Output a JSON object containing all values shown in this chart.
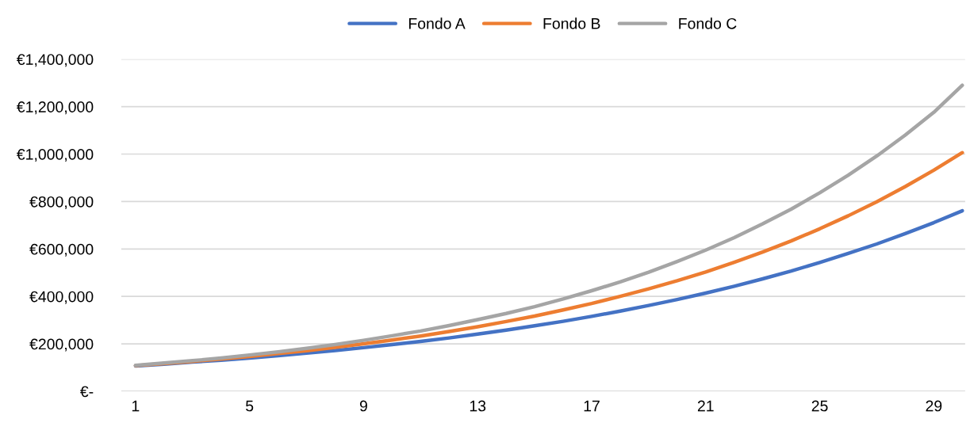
{
  "chart_data": {
    "type": "line",
    "categories": [
      "1",
      null,
      null,
      null,
      "5",
      null,
      null,
      null,
      "9",
      null,
      null,
      null,
      "13",
      null,
      null,
      null,
      "17",
      null,
      null,
      null,
      "21",
      null,
      null,
      null,
      "25",
      null,
      null,
      null,
      "29",
      null
    ],
    "series": [
      {
        "name": "Fondo A",
        "color": "#4472c4",
        "values": [
          107000,
          114000,
          123000,
          131000,
          140000,
          150000,
          161000,
          172000,
          184000,
          197000,
          210000,
          225000,
          241000,
          258000,
          276000,
          295000,
          316000,
          338000,
          362000,
          387000,
          414000,
          443000,
          474000,
          507000,
          543000,
          581000,
          621000,
          665000,
          711000,
          761000
        ]
      },
      {
        "name": "Fondo B",
        "color": "#ed7d31",
        "values": [
          108000,
          117000,
          126000,
          136000,
          147000,
          159000,
          171000,
          185000,
          200000,
          216000,
          233000,
          252000,
          272000,
          294000,
          317000,
          343000,
          370000,
          400000,
          432000,
          466000,
          503000,
          544000,
          587000,
          634000,
          685000,
          740000,
          799000,
          863000,
          932000,
          1006000
        ]
      },
      {
        "name": "Fondo C",
        "color": "#a5a5a5",
        "values": [
          109000,
          119000,
          129000,
          140000,
          153000,
          166000,
          181000,
          197000,
          215000,
          234000,
          254000,
          277000,
          302000,
          328000,
          357000,
          389000,
          424000,
          461000,
          502000,
          547000,
          595000,
          648000,
          706000,
          768000,
          837000,
          911000,
          992000,
          1080000,
          1176000,
          1290000
        ]
      }
    ],
    "ylim": [
      0,
      1400000
    ],
    "yticks": [
      {
        "value": 0,
        "label": "€-"
      },
      {
        "value": 200000,
        "label": "€200,000"
      },
      {
        "value": 400000,
        "label": "€400,000"
      },
      {
        "value": 600000,
        "label": "€600,000"
      },
      {
        "value": 800000,
        "label": "€800,000"
      },
      {
        "value": 1000000,
        "label": "€1,000,000"
      },
      {
        "value": 1200000,
        "label": "€1,200,000"
      },
      {
        "value": 1400000,
        "label": "€1,400,000"
      }
    ],
    "grid": "y",
    "legend": "top",
    "marker": "none",
    "line_style": "solid"
  }
}
